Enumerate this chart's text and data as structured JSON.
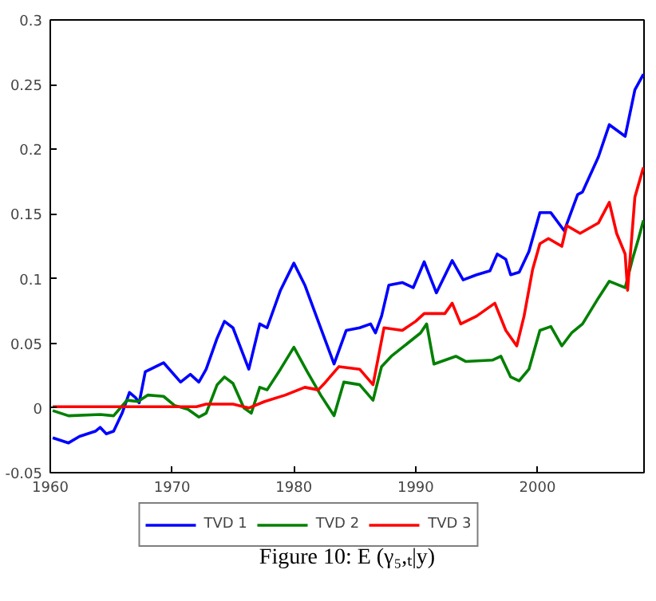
{
  "chart_data": {
    "type": "line",
    "title": "Figure 10: E (γ₅,ₜ|y)",
    "xlim": [
      1960,
      2008.75
    ],
    "xticks": [
      1960,
      1970,
      1980,
      1990,
      2000
    ],
    "ylim": [
      -0.05,
      0.3
    ],
    "yticks": [
      -0.05,
      0,
      0.05,
      0.1,
      0.15,
      0.2,
      0.25,
      0.3
    ],
    "grid": false,
    "legend": "bottom",
    "marker": "none",
    "line_style": "solid",
    "series": [
      {
        "name": "TVD 1",
        "color": "#0000ff",
        "x": [
          1960.2,
          1961.5,
          1962.4,
          1963.7,
          1964.1,
          1964.6,
          1965.2,
          1965.9,
          1966.5,
          1967.0,
          1967.3,
          1967.8,
          1969.3,
          1970.7,
          1971.5,
          1972.2,
          1972.8,
          1973.7,
          1974.3,
          1975.0,
          1976.3,
          1977.2,
          1977.8,
          1978.9,
          1980.0,
          1980.9,
          1982.0,
          1983.3,
          1984.3,
          1985.4,
          1986.3,
          1986.7,
          1987.2,
          1987.8,
          1988.9,
          1989.8,
          1990.7,
          1991.7,
          1993.0,
          1993.9,
          1995.0,
          1996.1,
          1996.7,
          1997.4,
          1997.8,
          1998.5,
          1999.3,
          2000.2,
          2001.1,
          2002.2,
          2003.3,
          2003.7,
          2005.0,
          2005.9,
          2007.2,
          2008.0,
          2008.7
        ],
        "values": [
          -0.023,
          -0.027,
          -0.022,
          -0.018,
          -0.015,
          -0.02,
          -0.018,
          -0.004,
          0.012,
          0.008,
          0.004,
          0.028,
          0.035,
          0.02,
          0.026,
          0.02,
          0.03,
          0.054,
          0.067,
          0.062,
          0.03,
          0.065,
          0.062,
          0.091,
          0.112,
          0.095,
          0.067,
          0.034,
          0.06,
          0.062,
          0.065,
          0.058,
          0.071,
          0.095,
          0.097,
          0.093,
          0.113,
          0.089,
          0.114,
          0.099,
          0.103,
          0.106,
          0.119,
          0.115,
          0.103,
          0.105,
          0.121,
          0.151,
          0.151,
          0.137,
          0.165,
          0.167,
          0.194,
          0.219,
          0.21,
          0.246,
          0.258
        ]
      },
      {
        "name": "TVD 2",
        "color": "#008000",
        "x": [
          1960.2,
          1961.5,
          1964.1,
          1965.2,
          1966.3,
          1967.2,
          1968.0,
          1969.3,
          1970.2,
          1971.3,
          1972.2,
          1972.8,
          1973.7,
          1974.3,
          1975.0,
          1975.9,
          1976.5,
          1977.2,
          1977.8,
          1978.9,
          1980.0,
          1981.1,
          1982.2,
          1983.3,
          1984.1,
          1985.4,
          1986.5,
          1987.2,
          1988.0,
          1989.6,
          1990.4,
          1990.9,
          1991.5,
          1993.3,
          1994.1,
          1996.3,
          1997.0,
          1997.8,
          1998.5,
          1999.3,
          2000.2,
          2001.1,
          2002.0,
          2002.8,
          2003.7,
          2005.0,
          2005.9,
          2007.2,
          2007.8,
          2008.3,
          2008.7
        ],
        "values": [
          -0.002,
          -0.006,
          -0.005,
          -0.006,
          0.006,
          0.005,
          0.01,
          0.009,
          0.002,
          -0.001,
          -0.007,
          -0.004,
          0.018,
          0.024,
          0.019,
          0.0,
          -0.004,
          0.016,
          0.014,
          0.03,
          0.047,
          0.028,
          0.01,
          -0.006,
          0.02,
          0.018,
          0.006,
          0.032,
          0.04,
          0.052,
          0.058,
          0.065,
          0.034,
          0.04,
          0.036,
          0.037,
          0.04,
          0.024,
          0.021,
          0.03,
          0.06,
          0.063,
          0.048,
          0.058,
          0.065,
          0.085,
          0.098,
          0.093,
          0.115,
          0.131,
          0.145
        ]
      },
      {
        "name": "TVD 3",
        "color": "#ff0000",
        "x": [
          1960.2,
          1972.0,
          1972.8,
          1975.0,
          1976.3,
          1977.6,
          1979.3,
          1980.9,
          1982.0,
          1982.6,
          1983.7,
          1985.4,
          1986.5,
          1987.4,
          1988.9,
          1990.0,
          1990.7,
          1992.4,
          1993.0,
          1993.7,
          1995.0,
          1996.5,
          1997.4,
          1998.3,
          1998.9,
          1999.6,
          2000.2,
          2000.9,
          2002.0,
          2002.4,
          2003.5,
          2005.0,
          2005.9,
          2006.5,
          2007.2,
          2007.4,
          2008.0,
          2008.7
        ],
        "values": [
          0.001,
          0.001,
          0.003,
          0.003,
          0.0,
          0.005,
          0.01,
          0.016,
          0.014,
          0.02,
          0.032,
          0.03,
          0.018,
          0.062,
          0.06,
          0.067,
          0.073,
          0.073,
          0.081,
          0.065,
          0.071,
          0.081,
          0.06,
          0.048,
          0.071,
          0.107,
          0.127,
          0.131,
          0.125,
          0.141,
          0.135,
          0.143,
          0.159,
          0.135,
          0.119,
          0.091,
          0.163,
          0.186
        ]
      }
    ]
  }
}
